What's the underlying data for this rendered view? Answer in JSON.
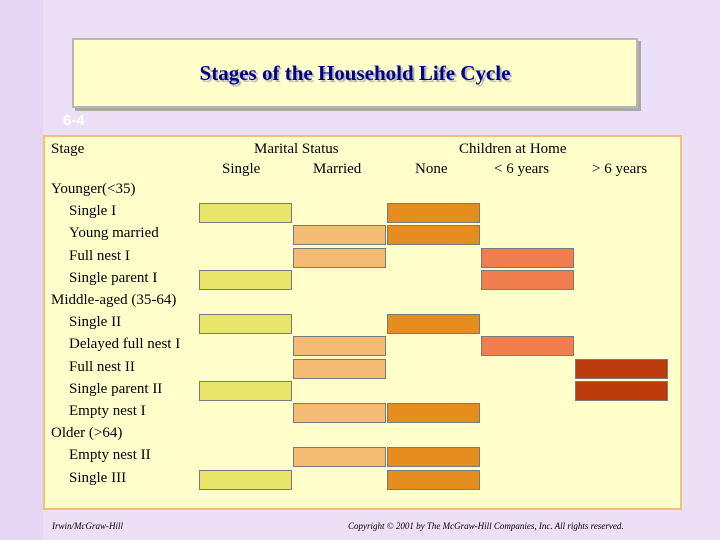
{
  "title": "Stages of the Household Life Cycle",
  "slide_number": "6-4",
  "headers": {
    "stage": "Stage",
    "marital_status": "Marital Status",
    "children_at_home": "Children at Home",
    "single": "Single",
    "married": "Married",
    "none": "None",
    "lt6": "< 6 years",
    "gt6": "> 6 years"
  },
  "rows": [
    {
      "label": "Younger(<35)",
      "group": true
    },
    {
      "label": "Single I",
      "cells": [
        "single",
        "none"
      ]
    },
    {
      "label": "Young married",
      "cells": [
        "married",
        "none"
      ]
    },
    {
      "label": "Full nest I",
      "cells": [
        "married",
        "lt6"
      ]
    },
    {
      "label": "Single parent I",
      "cells": [
        "single",
        "lt6"
      ]
    },
    {
      "label": "Middle-aged (35-64)",
      "group": true
    },
    {
      "label": "Single II",
      "cells": [
        "single",
        "none"
      ]
    },
    {
      "label": "Delayed full nest I",
      "cells": [
        "married",
        "lt6"
      ]
    },
    {
      "label": "Full nest II",
      "cells": [
        "married",
        "gt6"
      ]
    },
    {
      "label": "Single parent II",
      "cells": [
        "single",
        "gt6"
      ]
    },
    {
      "label": "Empty nest I",
      "cells": [
        "married",
        "none"
      ]
    },
    {
      "label": "Older (>64)",
      "group": true
    },
    {
      "label": "Empty nest II",
      "cells": [
        "married",
        "none"
      ]
    },
    {
      "label": "Single III",
      "cells": [
        "single",
        "none"
      ]
    }
  ],
  "colors": {
    "single": "#e8e66a",
    "married": "#f4bb74",
    "none": "#e58e1f",
    "lt6": "#f17e4e",
    "gt6": "#bc3c0d"
  },
  "footer": {
    "left": "Irwin/McGraw-Hill",
    "right": "Copyright © 2001 by The McGraw-Hill Companies, Inc. All rights reserved."
  }
}
